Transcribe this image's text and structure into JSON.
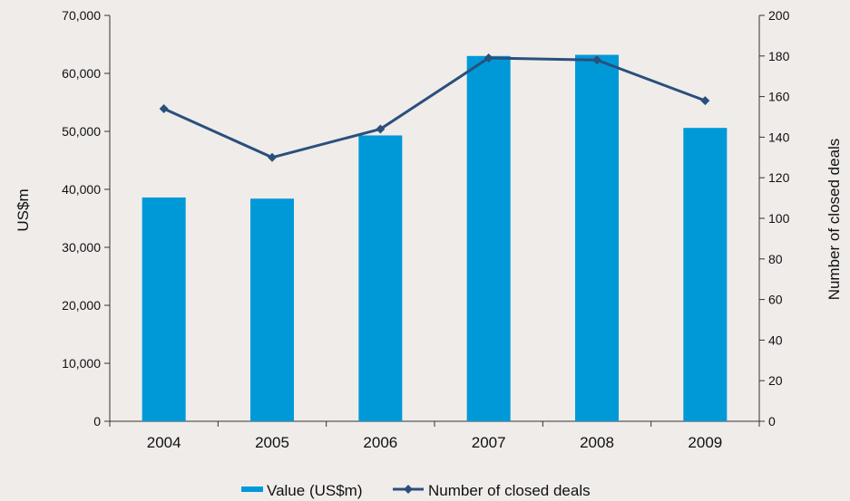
{
  "chart_data": {
    "type": "bar",
    "categories": [
      "2004",
      "2005",
      "2006",
      "2007",
      "2008",
      "2009"
    ],
    "series": [
      {
        "name": "Value (US$m)",
        "type": "bar",
        "axis": "left",
        "color": "#0099d8",
        "values": [
          38600,
          38400,
          49300,
          63000,
          63200,
          50600
        ]
      },
      {
        "name": "Number of closed deals",
        "type": "line",
        "axis": "right",
        "color": "#2b4f7c",
        "values": [
          154,
          130,
          144,
          179,
          178,
          158
        ]
      }
    ],
    "ylabel": "US$m",
    "y2label": "Number of closed deals",
    "ylim": [
      0,
      70000
    ],
    "y2lim": [
      0,
      200
    ],
    "yticks": [
      "0",
      "10,000",
      "20,000",
      "30,000",
      "40,000",
      "50,000",
      "60,000",
      "70,000"
    ],
    "y2ticks": [
      "0",
      "20",
      "40",
      "60",
      "80",
      "100",
      "120",
      "140",
      "160",
      "180",
      "200"
    ],
    "grid": false,
    "legend_position": "bottom"
  }
}
